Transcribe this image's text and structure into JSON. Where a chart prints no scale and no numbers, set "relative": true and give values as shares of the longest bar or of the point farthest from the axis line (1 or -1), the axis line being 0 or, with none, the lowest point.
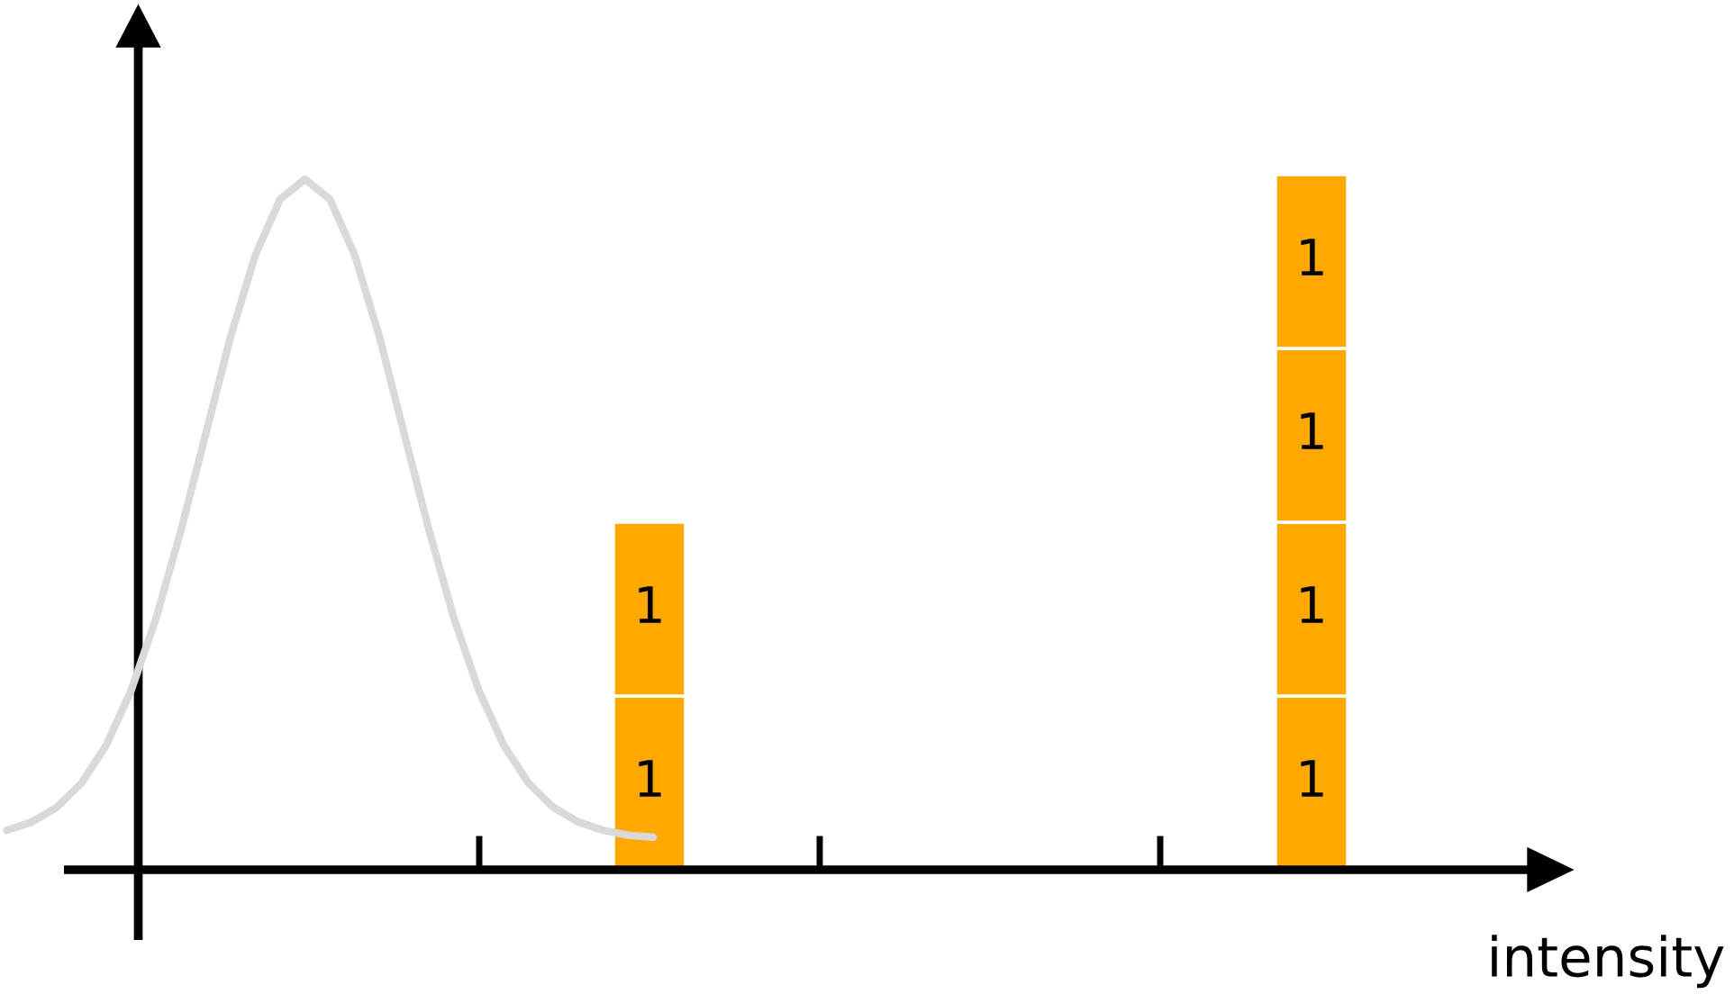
{
  "chart_data": [
    {
      "type": "line",
      "relative": true,
      "categories": [
        null,
        null,
        null,
        null,
        null,
        null,
        null,
        null,
        null,
        null,
        null,
        null,
        null,
        null,
        null,
        null,
        null,
        null,
        null,
        null,
        null,
        null,
        null,
        null,
        null,
        null,
        null
      ],
      "series": [
        {
          "color": "#d9d9d9",
          "values": [
            0.057,
            0.069,
            0.09,
            0.125,
            0.18,
            0.259,
            0.363,
            0.49,
            0.63,
            0.771,
            0.89,
            0.971,
            1,
            0.971,
            0.89,
            0.771,
            0.63,
            0.49,
            0.363,
            0.259,
            0.18,
            0.125,
            0.09,
            0.069,
            0.057,
            0.05,
            0.047
          ]
        }
      ]
    },
    {
      "type": "bar",
      "stacked": true,
      "xlabel": "intensity",
      "data_labels": true,
      "categories": [
        null,
        null
      ],
      "series": [
        {
          "color": "#ffa800",
          "values": [
            1,
            1
          ]
        },
        {
          "color": "#ffa800",
          "values": [
            1,
            1
          ]
        },
        {
          "color": "#ffa800",
          "values": [
            null,
            1
          ]
        },
        {
          "color": "#ffa800",
          "values": [
            null,
            1
          ]
        }
      ]
    }
  ]
}
